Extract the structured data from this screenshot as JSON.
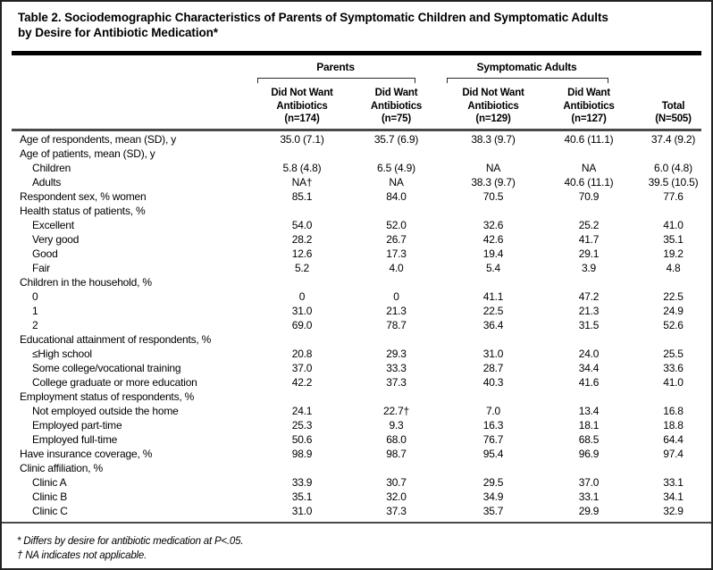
{
  "title": {
    "line1": "Table 2. Sociodemographic Characteristics of Parents of Symptomatic Children and Symptomatic Adults",
    "line2": "by Desire for Antibiotic Medication*"
  },
  "table": {
    "col_groups": [
      {
        "label": "Parents"
      },
      {
        "label": "Symptomatic Adults"
      }
    ],
    "columns": [
      {
        "lines": [
          "Did Not Want",
          "Antibiotics",
          "(n=174)"
        ]
      },
      {
        "lines": [
          "Did Want",
          "Antibiotics",
          "(n=75)"
        ]
      },
      {
        "lines": [
          "Did Not Want",
          "Antibiotics",
          "(n=129)"
        ]
      },
      {
        "lines": [
          "Did Want",
          "Antibiotics",
          "(n=127)"
        ]
      },
      {
        "lines": [
          "Total",
          "(N=505)"
        ]
      }
    ],
    "rows": [
      {
        "label": "Age of respondents, mean (SD), y",
        "indent": 0,
        "values": [
          "35.0 (7.1)",
          "35.7 (6.9)",
          "38.3 (9.7)",
          "40.6 (11.1)",
          "37.4 (9.2)"
        ]
      },
      {
        "label": "Age of patients, mean (SD), y",
        "indent": 0,
        "values": [
          "",
          "",
          "",
          "",
          ""
        ]
      },
      {
        "label": "Children",
        "indent": 1,
        "values": [
          "5.8 (4.8)",
          "6.5 (4.9)",
          "NA",
          "NA",
          "6.0 (4.8)"
        ]
      },
      {
        "label": "Adults",
        "indent": 1,
        "values": [
          "NA†",
          "NA",
          "38.3 (9.7)",
          "40.6 (11.1)",
          "39.5 (10.5)"
        ]
      },
      {
        "label": "Respondent sex, % women",
        "indent": 0,
        "values": [
          "85.1",
          "84.0",
          "70.5",
          "70.9",
          "77.6"
        ]
      },
      {
        "label": "Health status of patients, %",
        "indent": 0,
        "values": [
          "",
          "",
          "",
          "",
          ""
        ]
      },
      {
        "label": "Excellent",
        "indent": 1,
        "values": [
          "54.0",
          "52.0",
          "32.6",
          "25.2",
          "41.0"
        ]
      },
      {
        "label": "Very good",
        "indent": 1,
        "values": [
          "28.2",
          "26.7",
          "42.6",
          "41.7",
          "35.1"
        ]
      },
      {
        "label": "Good",
        "indent": 1,
        "values": [
          "12.6",
          "17.3",
          "19.4",
          "29.1",
          "19.2"
        ]
      },
      {
        "label": "Fair",
        "indent": 1,
        "values": [
          "5.2",
          "4.0",
          "5.4",
          "3.9",
          "4.8"
        ]
      },
      {
        "label": "Children in the household, %",
        "indent": 0,
        "values": [
          "",
          "",
          "",
          "",
          ""
        ]
      },
      {
        "label": "0",
        "indent": 1,
        "values": [
          "0",
          "0",
          "41.1",
          "47.2",
          "22.5"
        ]
      },
      {
        "label": "1",
        "indent": 1,
        "values": [
          "31.0",
          "21.3",
          "22.5",
          "21.3",
          "24.9"
        ]
      },
      {
        "label": "2",
        "indent": 1,
        "values": [
          "69.0",
          "78.7",
          "36.4",
          "31.5",
          "52.6"
        ]
      },
      {
        "label": "Educational attainment of respondents, %",
        "indent": 0,
        "values": [
          "",
          "",
          "",
          "",
          ""
        ]
      },
      {
        "label": "≤High school",
        "indent": 1,
        "values": [
          "20.8",
          "29.3",
          "31.0",
          "24.0",
          "25.5"
        ]
      },
      {
        "label": "Some college/vocational training",
        "indent": 1,
        "values": [
          "37.0",
          "33.3",
          "28.7",
          "34.4",
          "33.6"
        ]
      },
      {
        "label": "College graduate or more education",
        "indent": 1,
        "values": [
          "42.2",
          "37.3",
          "40.3",
          "41.6",
          "41.0"
        ]
      },
      {
        "label": "Employment status of respondents, %",
        "indent": 0,
        "values": [
          "",
          "",
          "",
          "",
          ""
        ]
      },
      {
        "label": "Not employed outside the home",
        "indent": 1,
        "values": [
          "24.1",
          "22.7†",
          "7.0",
          "13.4",
          "16.8"
        ]
      },
      {
        "label": "Employed part-time",
        "indent": 1,
        "values": [
          "25.3",
          "9.3",
          "16.3",
          "18.1",
          "18.8"
        ]
      },
      {
        "label": "Employed full-time",
        "indent": 1,
        "values": [
          "50.6",
          "68.0",
          "76.7",
          "68.5",
          "64.4"
        ]
      },
      {
        "label": "Have insurance coverage, %",
        "indent": 0,
        "values": [
          "98.9",
          "98.7",
          "95.4",
          "96.9",
          "97.4"
        ]
      },
      {
        "label": "Clinic affiliation, %",
        "indent": 0,
        "values": [
          "",
          "",
          "",
          "",
          ""
        ]
      },
      {
        "label": "Clinic A",
        "indent": 1,
        "values": [
          "33.9",
          "30.7",
          "29.5",
          "37.0",
          "33.1"
        ]
      },
      {
        "label": "Clinic B",
        "indent": 1,
        "values": [
          "35.1",
          "32.0",
          "34.9",
          "33.1",
          "34.1"
        ]
      },
      {
        "label": "Clinic C",
        "indent": 1,
        "values": [
          "31.0",
          "37.3",
          "35.7",
          "29.9",
          "32.9"
        ]
      }
    ]
  },
  "footnotes": [
    "* Differs by desire for antibiotic medication at P<.05.",
    "† NA indicates not applicable."
  ]
}
